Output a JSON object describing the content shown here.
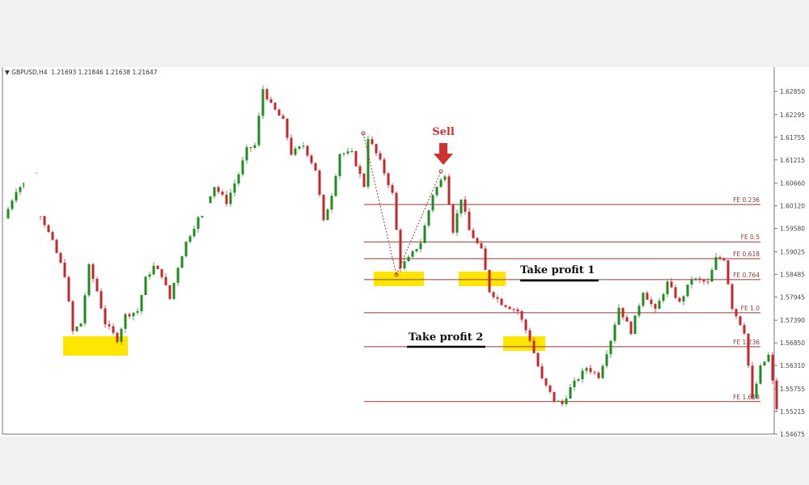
{
  "header": {
    "symbol": "GBPUSD,H4",
    "ohlc": "1.21693 1.21846 1.21638 1.21647"
  },
  "colors": {
    "bull": "#1e8c1e",
    "bear": "#c8262a",
    "fib_line": "#8b3a3a",
    "highlight": "#ffe600",
    "sell": "#d0312d"
  },
  "chart_data": {
    "type": "candlestick",
    "title": "",
    "ylim": [
      1.54675,
      1.6285
    ],
    "y_ticks": [
      "1.62850",
      "1.62295",
      "1.61755",
      "1.61215",
      "1.60660",
      "1.60120",
      "1.59580",
      "1.59025",
      "1.58485",
      "1.57945",
      "1.57390",
      "1.56850",
      "1.56310",
      "1.55755",
      "1.55215",
      "1.54675"
    ],
    "price_path": [
      [
        0,
        1.5982
      ],
      [
        3,
        1.605
      ],
      [
        8,
        1.6088
      ],
      [
        9,
        1.5992
      ],
      [
        12,
        1.5925
      ],
      [
        15,
        1.5847
      ],
      [
        17,
        1.5712
      ],
      [
        19,
        1.5732
      ],
      [
        21,
        1.5867
      ],
      [
        23,
        1.5809
      ],
      [
        25,
        1.5732
      ],
      [
        28,
        1.5693
      ],
      [
        30,
        1.5751
      ],
      [
        33,
        1.5761
      ],
      [
        35,
        1.5838
      ],
      [
        37,
        1.5867
      ],
      [
        39,
        1.5847
      ],
      [
        41,
        1.579
      ],
      [
        43,
        1.5867
      ],
      [
        45,
        1.5925
      ],
      [
        48,
        1.5982
      ],
      [
        52,
        1.6059
      ],
      [
        55,
        1.6021
      ],
      [
        58,
        1.6088
      ],
      [
        60,
        1.6146
      ],
      [
        62,
        1.6156
      ],
      [
        64,
        1.6291
      ],
      [
        66,
        1.6252
      ],
      [
        69,
        1.6214
      ],
      [
        71,
        1.6137
      ],
      [
        74,
        1.6156
      ],
      [
        77,
        1.6098
      ],
      [
        79,
        1.5973
      ],
      [
        81,
        1.604
      ],
      [
        83,
        1.6137
      ],
      [
        86,
        1.6137
      ],
      [
        89,
        1.606
      ],
      [
        90,
        1.6175
      ],
      [
        93,
        1.6117
      ],
      [
        96,
        1.604
      ],
      [
        98,
        1.5867
      ],
      [
        100,
        1.5886
      ],
      [
        103,
        1.5925
      ],
      [
        106,
        1.604
      ],
      [
        109,
        1.6088
      ],
      [
        111,
        1.5953
      ],
      [
        113,
        1.6031
      ],
      [
        115,
        1.5953
      ],
      [
        118,
        1.5905
      ],
      [
        120,
        1.5809
      ],
      [
        123,
        1.578
      ],
      [
        127,
        1.5761
      ],
      [
        130,
        1.5693
      ],
      [
        133,
        1.5597
      ],
      [
        136,
        1.5549
      ],
      [
        138,
        1.5539
      ],
      [
        140,
        1.5577
      ],
      [
        144,
        1.5626
      ],
      [
        147,
        1.5606
      ],
      [
        150,
        1.5693
      ],
      [
        152,
        1.577
      ],
      [
        155,
        1.5712
      ],
      [
        158,
        1.5809
      ],
      [
        161,
        1.5761
      ],
      [
        164,
        1.5828
      ],
      [
        167,
        1.578
      ],
      [
        170,
        1.5838
      ],
      [
        174,
        1.5828
      ],
      [
        176,
        1.5886
      ],
      [
        178,
        1.5886
      ],
      [
        180,
        1.577
      ],
      [
        183,
        1.5712
      ],
      [
        185,
        1.5549
      ],
      [
        187,
        1.5626
      ],
      [
        189,
        1.5655
      ],
      [
        191,
        1.5529
      ]
    ],
    "fibonacci_expansion": [
      {
        "label": "FE 0.236",
        "price": 1.6015
      },
      {
        "label": "FE 0.5",
        "price": 1.5926
      },
      {
        "label": "FE 0.618",
        "price": 1.5886
      },
      {
        "label": "FE 0.764",
        "price": 1.5836
      },
      {
        "label": "FE 1.0",
        "price": 1.5757
      },
      {
        "label": "FE 1.236",
        "price": 1.5676
      },
      {
        "label": "FE 1.618",
        "price": 1.5545
      }
    ],
    "annotations": {
      "sell": "Sell",
      "take_profit_1": "Take profit 1",
      "take_profit_2": "Take profit 2"
    }
  }
}
